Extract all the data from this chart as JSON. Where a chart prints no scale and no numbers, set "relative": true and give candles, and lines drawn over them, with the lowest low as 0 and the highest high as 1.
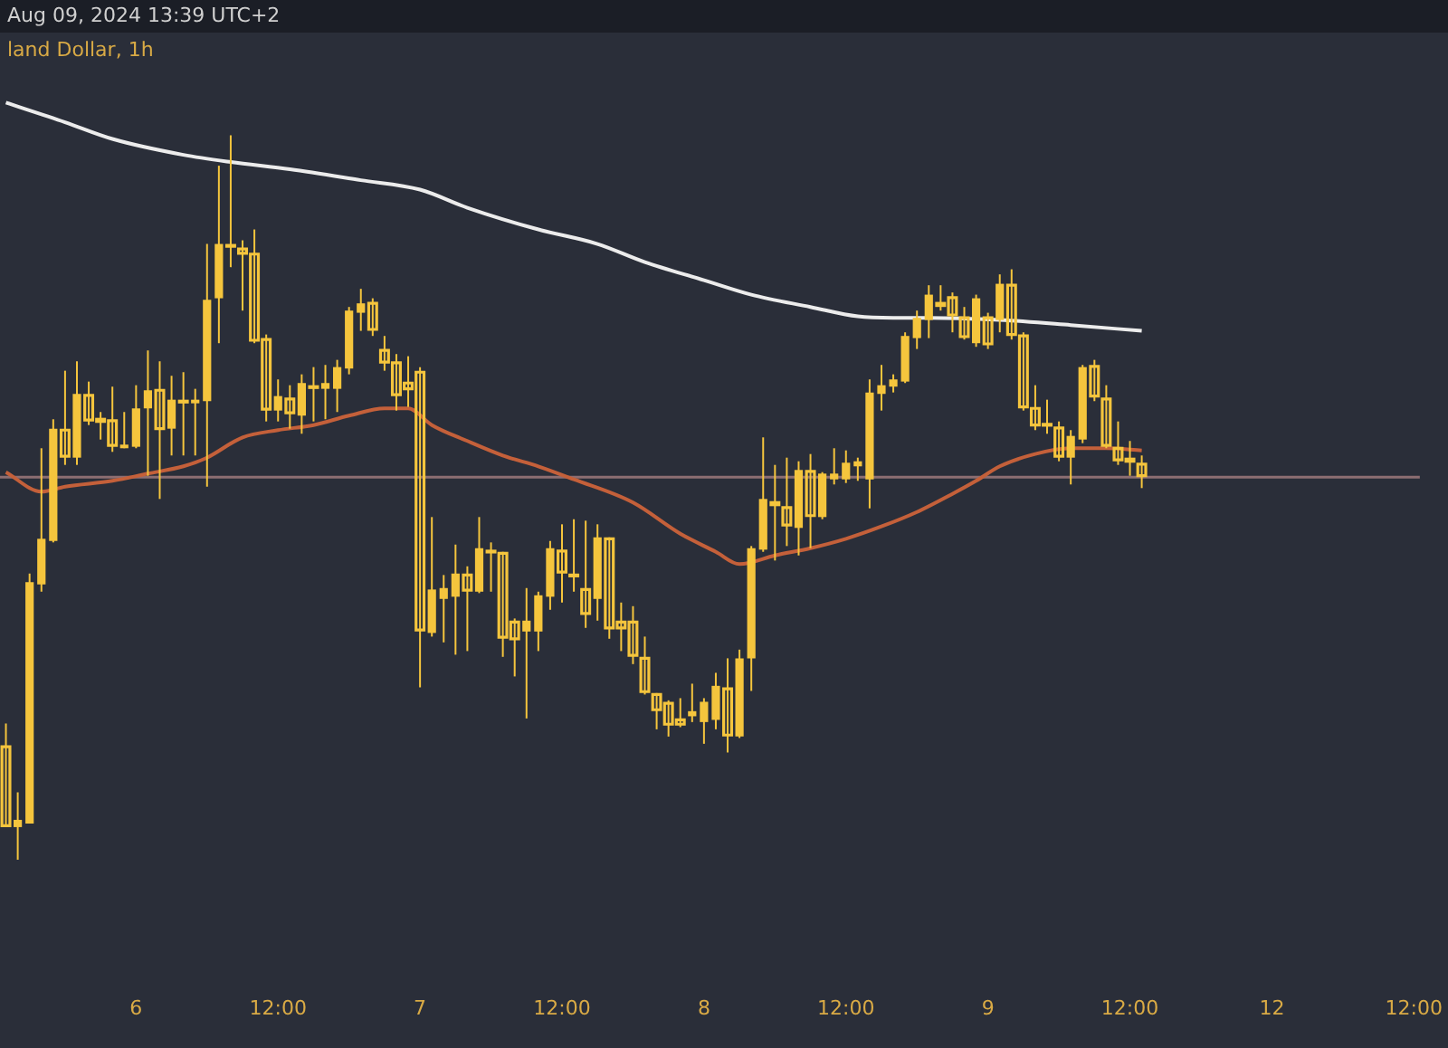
{
  "chart_data": {
    "type": "candlestick",
    "title": "land Dollar, 1h",
    "annotations": [
      "Aug 09, 2024 13:39 UTC+2"
    ],
    "relative": true,
    "color": "#f5c53d",
    "categories": [
      null,
      null,
      null,
      null,
      null,
      null,
      null,
      null,
      null,
      null,
      null,
      "6",
      null,
      null,
      null,
      null,
      null,
      null,
      null,
      null,
      null,
      null,
      null,
      "12:00",
      null,
      null,
      null,
      null,
      null,
      null,
      null,
      null,
      null,
      null,
      null,
      "7",
      null,
      null,
      null,
      null,
      null,
      null,
      null,
      null,
      null,
      null,
      null,
      "12:00",
      null,
      null,
      null,
      null,
      null,
      null,
      null,
      null,
      null,
      null,
      null,
      "8",
      null,
      null,
      null,
      null,
      null,
      null,
      null,
      null,
      null,
      null,
      null,
      "12:00",
      null,
      null,
      null,
      null,
      null,
      null,
      null,
      null,
      null,
      null,
      null,
      "9",
      null,
      null,
      null,
      null,
      null,
      null,
      null,
      null,
      null,
      null,
      null,
      "12:00",
      null,
      null,
      null,
      null,
      null,
      null,
      null,
      null,
      null,
      null,
      null,
      "12",
      null,
      null,
      null,
      null,
      null,
      null,
      null,
      null,
      null,
      null,
      null,
      "12:00"
    ],
    "ohlc": [
      [
        0.158,
        0.188,
        0.045,
        0.045
      ],
      [
        0.045,
        0.093,
        0,
        0.055
      ],
      [
        0.05,
        0.395,
        0.05,
        0.383
      ],
      [
        0.38,
        0.568,
        0.37,
        0.443
      ],
      [
        0.44,
        0.608,
        0.438,
        0.595
      ],
      [
        0.595,
        0.675,
        0.545,
        0.555
      ],
      [
        0.555,
        0.688,
        0.545,
        0.643
      ],
      [
        0.643,
        0.66,
        0.6,
        0.605
      ],
      [
        0.61,
        0.618,
        0.58,
        0.603
      ],
      [
        0.608,
        0.653,
        0.563,
        0.57
      ],
      [
        0.57,
        0.618,
        0.568,
        0.573
      ],
      [
        0.57,
        0.655,
        0.568,
        0.623
      ],
      [
        0.623,
        0.703,
        0.53,
        0.648
      ],
      [
        0.65,
        0.688,
        0.498,
        0.593
      ],
      [
        0.595,
        0.668,
        0.558,
        0.635
      ],
      [
        0.635,
        0.673,
        0.558,
        0.633
      ],
      [
        0.633,
        0.65,
        0.558,
        0.635
      ],
      [
        0.633,
        0.85,
        0.515,
        0.773
      ],
      [
        0.775,
        0.958,
        0.713,
        0.85
      ],
      [
        0.85,
        1,
        0.818,
        0.845
      ],
      [
        0.845,
        0.855,
        0.758,
        0.835
      ],
      [
        0.838,
        0.87,
        0.713,
        0.715
      ],
      [
        0.72,
        0.725,
        0.605,
        0.62
      ],
      [
        0.62,
        0.663,
        0.605,
        0.64
      ],
      [
        0.638,
        0.655,
        0.595,
        0.615
      ],
      [
        0.613,
        0.67,
        0.588,
        0.658
      ],
      [
        0.655,
        0.68,
        0.605,
        0.653
      ],
      [
        0.65,
        0.683,
        0.608,
        0.658
      ],
      [
        0.65,
        0.69,
        0.618,
        0.68
      ],
      [
        0.678,
        0.763,
        0.67,
        0.758
      ],
      [
        0.755,
        0.788,
        0.73,
        0.768
      ],
      [
        0.77,
        0.775,
        0.723,
        0.73
      ],
      [
        0.705,
        0.723,
        0.675,
        0.685
      ],
      [
        0.688,
        0.698,
        0.62,
        0.64
      ],
      [
        0.66,
        0.695,
        0.625,
        0.648
      ],
      [
        0.675,
        0.68,
        0.238,
        0.315
      ],
      [
        0.313,
        0.473,
        0.308,
        0.373
      ],
      [
        0.36,
        0.393,
        0.3,
        0.375
      ],
      [
        0.363,
        0.435,
        0.283,
        0.395
      ],
      [
        0.395,
        0.405,
        0.288,
        0.37
      ],
      [
        0.37,
        0.473,
        0.368,
        0.43
      ],
      [
        0.428,
        0.438,
        0.37,
        0.423
      ],
      [
        0.425,
        0.425,
        0.28,
        0.305
      ],
      [
        0.33,
        0.333,
        0.253,
        0.303
      ],
      [
        0.315,
        0.375,
        0.195,
        0.33
      ],
      [
        0.315,
        0.37,
        0.288,
        0.365
      ],
      [
        0.363,
        0.44,
        0.345,
        0.43
      ],
      [
        0.428,
        0.463,
        0.355,
        0.395
      ],
      [
        0.395,
        0.47,
        0.37,
        0.393
      ],
      [
        0.375,
        0.468,
        0.32,
        0.338
      ],
      [
        0.36,
        0.463,
        0.33,
        0.445
      ],
      [
        0.445,
        0.445,
        0.305,
        0.318
      ],
      [
        0.33,
        0.355,
        0.288,
        0.318
      ],
      [
        0.33,
        0.35,
        0.27,
        0.28
      ],
      [
        0.28,
        0.308,
        0.228,
        0.23
      ],
      [
        0.23,
        0.23,
        0.18,
        0.205
      ],
      [
        0.218,
        0.22,
        0.17,
        0.185
      ],
      [
        0.195,
        0.223,
        0.183,
        0.185
      ],
      [
        0.198,
        0.243,
        0.19,
        0.205
      ],
      [
        0.19,
        0.223,
        0.16,
        0.218
      ],
      [
        0.193,
        0.258,
        0.18,
        0.24
      ],
      [
        0.238,
        0.278,
        0.148,
        0.17
      ],
      [
        0.17,
        0.29,
        0.168,
        0.278
      ],
      [
        0.278,
        0.433,
        0.233,
        0.43
      ],
      [
        0.428,
        0.583,
        0.425,
        0.498
      ],
      [
        0.495,
        0.545,
        0.413,
        0.488
      ],
      [
        0.488,
        0.555,
        0.433,
        0.46
      ],
      [
        0.458,
        0.55,
        0.42,
        0.538
      ],
      [
        0.538,
        0.56,
        0.43,
        0.473
      ],
      [
        0.473,
        0.535,
        0.47,
        0.533
      ],
      [
        0.525,
        0.568,
        0.518,
        0.533
      ],
      [
        0.525,
        0.565,
        0.52,
        0.548
      ],
      [
        0.543,
        0.555,
        0.523,
        0.55
      ],
      [
        0.525,
        0.663,
        0.485,
        0.645
      ],
      [
        0.643,
        0.683,
        0.62,
        0.655
      ],
      [
        0.653,
        0.67,
        0.645,
        0.663
      ],
      [
        0.66,
        0.728,
        0.658,
        0.723
      ],
      [
        0.72,
        0.758,
        0.705,
        0.748
      ],
      [
        0.745,
        0.793,
        0.72,
        0.78
      ],
      [
        0.77,
        0.793,
        0.758,
        0.763
      ],
      [
        0.778,
        0.783,
        0.728,
        0.75
      ],
      [
        0.75,
        0.763,
        0.718,
        0.72
      ],
      [
        0.713,
        0.78,
        0.708,
        0.775
      ],
      [
        0.75,
        0.755,
        0.705,
        0.71
      ],
      [
        0.745,
        0.808,
        0.728,
        0.795
      ],
      [
        0.795,
        0.815,
        0.718,
        0.723
      ],
      [
        0.725,
        0.728,
        0.62,
        0.623
      ],
      [
        0.625,
        0.655,
        0.593,
        0.598
      ],
      [
        0.603,
        0.635,
        0.588,
        0.598
      ],
      [
        0.598,
        0.605,
        0.55,
        0.555
      ],
      [
        0.555,
        0.593,
        0.518,
        0.585
      ],
      [
        0.58,
        0.683,
        0.575,
        0.68
      ],
      [
        0.683,
        0.69,
        0.633,
        0.638
      ],
      [
        0.638,
        0.655,
        0.568,
        0.57
      ],
      [
        0.57,
        0.605,
        0.545,
        0.55
      ],
      [
        0.555,
        0.578,
        0.53,
        0.548
      ],
      [
        0.548,
        0.558,
        0.513,
        0.528
      ],
      null,
      null,
      null,
      null,
      null,
      null,
      null,
      null,
      null,
      null,
      null,
      null,
      null,
      null,
      null,
      null,
      null,
      null,
      null,
      null,
      null,
      null,
      null
    ],
    "series": [
      {
        "type": "line",
        "color": "#ececec",
        "values": [
          1.045,
          null,
          null,
          null,
          null,
          1.018,
          null,
          null,
          null,
          0.995,
          null,
          null,
          null,
          null,
          null,
          0.973,
          null,
          null,
          null,
          0.963,
          null,
          null,
          null,
          null,
          0.953,
          null,
          null,
          null,
          null,
          null,
          0.938,
          null,
          null,
          null,
          null,
          0.925,
          null,
          null,
          null,
          0.9,
          null,
          null,
          null,
          null,
          null,
          0.87,
          null,
          null,
          null,
          null,
          0.85,
          null,
          null,
          null,
          0.825,
          null,
          null,
          null,
          null,
          0.8,
          null,
          null,
          null,
          0.78,
          null,
          null,
          null,
          null,
          0.763,
          null,
          null,
          null,
          0.75,
          null,
          null,
          0.748,
          null,
          null,
          0.748,
          null,
          null,
          null,
          null,
          null,
          0.745,
          null,
          null,
          null,
          null,
          null,
          0.738,
          null,
          null,
          null,
          null,
          null,
          0.73,
          null,
          null,
          null,
          null,
          null,
          null,
          null,
          null,
          null,
          null,
          null,
          null,
          null,
          null,
          null,
          null,
          null,
          null,
          null,
          null,
          null,
          null,
          null
        ]
      },
      {
        "type": "line",
        "color": "#c4603a",
        "values": [
          0.535,
          null,
          null,
          0.508,
          null,
          0.515,
          null,
          null,
          null,
          0.523,
          null,
          null,
          0.533,
          null,
          null,
          0.543,
          null,
          0.555,
          null,
          null,
          0.583,
          null,
          null,
          0.593,
          null,
          null,
          0.6,
          null,
          null,
          0.613,
          null,
          null,
          0.623,
          null,
          0.623,
          null,
          0.6,
          null,
          null,
          0.578,
          null,
          null,
          0.558,
          null,
          null,
          0.543,
          null,
          null,
          0.525,
          null,
          null,
          null,
          null,
          0.493,
          null,
          null,
          null,
          0.45,
          null,
          null,
          0.425,
          null,
          0.408,
          null,
          null,
          0.42,
          null,
          null,
          0.43,
          null,
          null,
          0.443,
          null,
          null,
          0.46,
          null,
          null,
          0.48,
          null,
          null,
          0.505,
          null,
          0.523,
          null,
          0.543,
          null,
          null,
          0.56,
          null,
          null,
          0.568,
          null,
          null,
          0.568,
          null,
          null,
          0.565,
          null,
          null,
          null,
          null,
          null,
          null,
          null,
          null,
          null,
          null,
          null,
          null,
          null,
          null,
          null,
          null,
          null,
          null,
          null,
          null,
          null,
          null,
          null
        ]
      }
    ],
    "ref_lines": [
      {
        "axis": "y",
        "value": 0.528,
        "color": "#8c6e72"
      }
    ]
  }
}
